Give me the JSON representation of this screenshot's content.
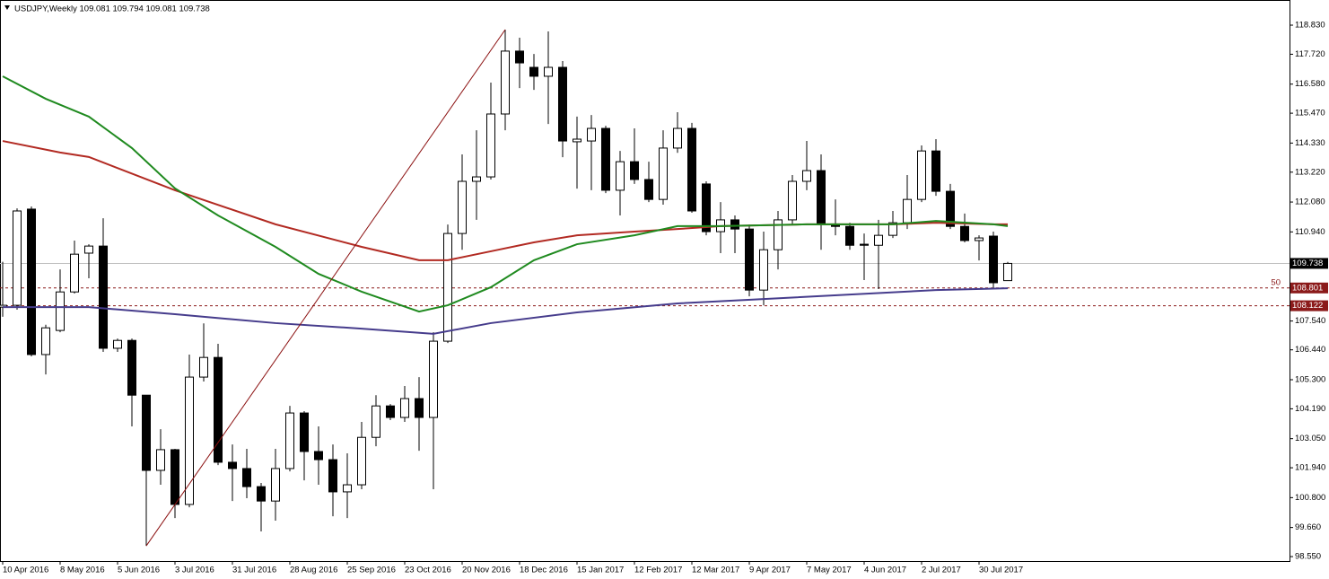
{
  "chart_data": {
    "type": "candlestick",
    "title": "USDJPY,Weekly  109.081 109.794 109.081 109.738",
    "categories": [
      "10 Apr 2016",
      null,
      null,
      null,
      "8 May 2016",
      null,
      null,
      null,
      "5 Jun 2016",
      null,
      null,
      null,
      "3 Jul 2016",
      null,
      null,
      null,
      "31 Jul 2016",
      null,
      null,
      null,
      "28 Aug 2016",
      null,
      null,
      null,
      "25 Sep 2016",
      null,
      null,
      null,
      "23 Oct 2016",
      null,
      null,
      null,
      "20 Nov 2016",
      null,
      null,
      null,
      "18 Dec 2016",
      null,
      null,
      null,
      "15 Jan 2017",
      null,
      null,
      null,
      "12 Feb 2017",
      null,
      null,
      null,
      "12 Mar 2017",
      null,
      null,
      null,
      "9 Apr 2017",
      null,
      null,
      null,
      "7 May 2017",
      null,
      null,
      null,
      "4 Jun 2017",
      null,
      null,
      null,
      "2 Jul 2017",
      null,
      null,
      null,
      "30 Jul 2017",
      null,
      null
    ],
    "open": [
      108.07,
      108.14,
      111.81,
      106.26,
      107.18,
      108.65,
      110.13,
      110.4,
      106.5,
      106.8,
      104.71,
      101.84,
      102.63,
      100.54,
      105.4,
      106.15,
      102.15,
      101.91,
      101.22,
      100.67,
      101.91,
      104.03,
      102.56,
      102.25,
      101.02,
      101.29,
      103.1,
      104.3,
      103.86,
      104.58,
      103.86,
      106.77,
      110.88,
      112.87,
      113.04,
      115.44,
      117.84,
      117.22,
      116.88,
      117.22,
      114.38,
      114.41,
      114.89,
      112.53,
      113.62,
      112.94,
      112.18,
      114.14,
      114.89,
      112.77,
      110.95,
      111.4,
      111.05,
      108.72,
      110.26,
      111.4,
      112.87,
      113.28,
      111.22,
      111.15,
      110.47,
      110.43,
      110.81,
      111.29,
      112.18,
      114.03,
      112.49,
      111.15,
      110.61,
      110.78,
      109.081
    ],
    "high": [
      109.8,
      111.84,
      111.91,
      107.4,
      109.51,
      110.61,
      110.47,
      111.46,
      106.87,
      106.87,
      104.71,
      103.41,
      102.66,
      106.26,
      107.45,
      106.67,
      102.83,
      102.66,
      101.36,
      102.66,
      104.3,
      104.1,
      103.52,
      102.83,
      102.49,
      103.69,
      104.71,
      104.37,
      105.06,
      105.4,
      107.11,
      111.22,
      113.9,
      114.82,
      116.64,
      118.66,
      118.35,
      117.73,
      118.59,
      117.46,
      115.34,
      115.4,
      114.99,
      114.03,
      114.89,
      113.62,
      114.82,
      115.51,
      115.1,
      112.87,
      112.08,
      111.57,
      111.22,
      110.95,
      111.74,
      113.11,
      114.41,
      113.9,
      112.18,
      111.29,
      110.88,
      111.4,
      111.74,
      113.11,
      114.24,
      114.48,
      112.77,
      111.64,
      110.81,
      110.95,
      109.794
    ],
    "low": [
      107.7,
      107.97,
      106.19,
      105.5,
      107.11,
      108.59,
      109.17,
      106.36,
      106.36,
      103.52,
      98.96,
      101.29,
      100.02,
      100.43,
      105.23,
      102.04,
      100.67,
      100.78,
      99.51,
      99.92,
      101.8,
      101.46,
      101.29,
      100.09,
      100.02,
      101.12,
      102.76,
      103.76,
      103.69,
      102.59,
      101.12,
      106.7,
      110.26,
      111.4,
      112.94,
      114.82,
      116.43,
      116.36,
      115.06,
      113.79,
      112.59,
      112.53,
      112.42,
      111.57,
      112.77,
      112.08,
      111.98,
      113.96,
      111.67,
      110.81,
      110.13,
      110.13,
      108.48,
      108.14,
      109.51,
      111.22,
      112.53,
      110.26,
      110.81,
      110.26,
      109.1,
      108.76,
      110.71,
      111.05,
      112.08,
      112.32,
      111.05,
      110.54,
      109.85,
      108.76,
      109.081
    ],
    "close": [
      108.14,
      111.74,
      106.26,
      107.28,
      108.65,
      110.09,
      110.4,
      106.5,
      106.8,
      104.71,
      101.84,
      102.63,
      100.54,
      105.4,
      106.15,
      102.15,
      101.91,
      101.22,
      100.67,
      101.91,
      104.03,
      102.56,
      102.25,
      101.02,
      101.29,
      103.1,
      104.3,
      103.86,
      104.58,
      103.86,
      106.77,
      110.88,
      112.87,
      113.04,
      115.44,
      117.84,
      117.39,
      116.88,
      117.22,
      114.41,
      114.48,
      114.89,
      112.53,
      113.62,
      112.94,
      112.18,
      114.14,
      114.89,
      111.74,
      110.95,
      111.4,
      111.05,
      108.72,
      110.26,
      111.4,
      112.87,
      113.28,
      111.22,
      111.15,
      110.43,
      110.43,
      110.81,
      111.29,
      112.18,
      114.03,
      112.49,
      111.15,
      110.61,
      110.71,
      109.0,
      109.738
    ],
    "up_color": "#ffffff",
    "down_color": "#000000",
    "overlays": [
      {
        "color": "#b22a22",
        "x": [
          0,
          4,
          6,
          12,
          19,
          25,
          29,
          31,
          34,
          37,
          40,
          44,
          47,
          50,
          56,
          62,
          65,
          69,
          70
        ],
        "values": [
          114.41,
          113.97,
          113.8,
          112.53,
          111.23,
          110.37,
          109.86,
          109.86,
          110.2,
          110.54,
          110.81,
          110.95,
          111.05,
          111.16,
          111.23,
          111.23,
          111.29,
          111.23,
          111.23
        ]
      },
      {
        "color": "#1f8a1f",
        "x": [
          0,
          3,
          6,
          9,
          12,
          15,
          19,
          22,
          25,
          29,
          31,
          34,
          37,
          40,
          44,
          47,
          50,
          56,
          62,
          65,
          69,
          70
        ],
        "values": [
          116.88,
          116.02,
          115.34,
          114.14,
          112.6,
          111.57,
          110.37,
          109.34,
          108.66,
          107.9,
          108.14,
          108.83,
          109.86,
          110.47,
          110.81,
          111.16,
          111.16,
          111.23,
          111.23,
          111.36,
          111.23,
          111.16
        ]
      },
      {
        "color": "#463c8c",
        "x": [
          0,
          6,
          12,
          19,
          25,
          30,
          34,
          40,
          47,
          53,
          59,
          65,
          70
        ],
        "values": [
          108.07,
          108.07,
          107.8,
          107.46,
          107.25,
          107.05,
          107.46,
          107.87,
          108.21,
          108.38,
          108.55,
          108.72,
          108.79
        ]
      },
      {
        "color": "#8b1010",
        "x": [
          10,
          35
        ],
        "values": [
          98.96,
          118.66
        ]
      }
    ],
    "levels": [
      {
        "value": 108.801,
        "color": "#8b1a1a",
        "tag": "50"
      },
      {
        "value": 108.122,
        "color": "#8b1a1a"
      }
    ],
    "last_price": {
      "value": 109.738,
      "color": "#c0c0c0"
    },
    "ylim": [
      98.38,
      119.79
    ],
    "yticks": [
      {
        "value": 118.83,
        "label": "118.830"
      },
      {
        "value": 117.72,
        "label": "117.720"
      },
      {
        "value": 116.58,
        "label": "116.580"
      },
      {
        "value": 115.47,
        "label": "115.470"
      },
      {
        "value": 114.33,
        "label": "114.330"
      },
      {
        "value": 113.22,
        "label": "113.220"
      },
      {
        "value": 112.08,
        "label": "112.080"
      },
      {
        "value": 110.94,
        "label": "110.940"
      },
      {
        "value": 107.54,
        "label": "107.540"
      },
      {
        "value": 106.44,
        "label": "106.440"
      },
      {
        "value": 105.3,
        "label": "105.300"
      },
      {
        "value": 104.19,
        "label": "104.190"
      },
      {
        "value": 103.05,
        "label": "103.050"
      },
      {
        "value": 101.94,
        "label": "101.940"
      },
      {
        "value": 100.8,
        "label": "100.800"
      },
      {
        "value": 99.66,
        "label": "99.660"
      },
      {
        "value": 98.55,
        "label": "98.550"
      }
    ]
  }
}
